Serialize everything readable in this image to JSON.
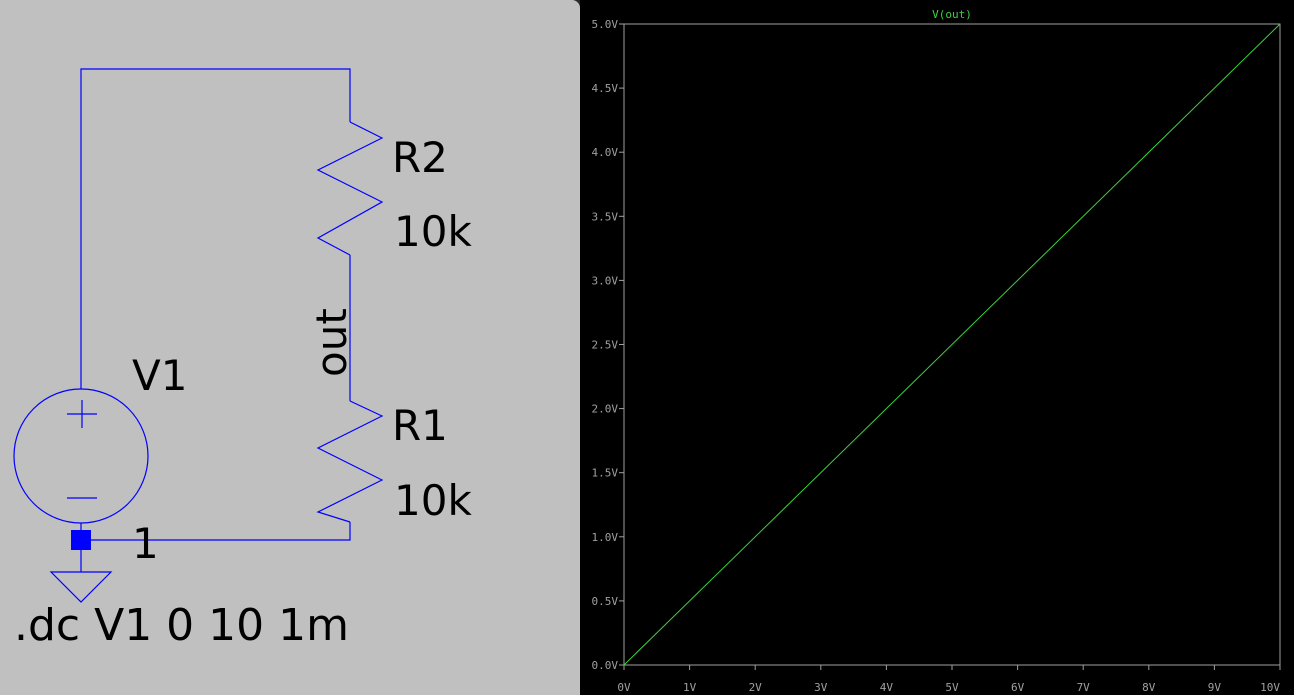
{
  "colors": {
    "schematic_bg": "#c0c0c0",
    "wire": "#0000ff",
    "plot_bg": "#000000",
    "plot_axis": "#a0a0a0",
    "trace": "#3cd23c"
  },
  "schematic": {
    "source_name": "V1",
    "r2_name": "R2",
    "r2_value": "10k",
    "r1_name": "R1",
    "r1_value": "10k",
    "net_label": "out",
    "node_label": "1",
    "directive": ".dc V1 0 10 1m"
  },
  "plot": {
    "chart_data": {
      "type": "line",
      "title": "",
      "xlabel": "",
      "ylabel": "",
      "xlim": [
        0,
        10
      ],
      "ylim": [
        0,
        5
      ],
      "x_ticks": [
        "0V",
        "1V",
        "2V",
        "3V",
        "4V",
        "5V",
        "6V",
        "7V",
        "8V",
        "9V",
        "10V"
      ],
      "y_ticks": [
        "0.0V",
        "0.5V",
        "1.0V",
        "1.5V",
        "2.0V",
        "2.5V",
        "3.0V",
        "3.5V",
        "4.0V",
        "4.5V",
        "5.0V"
      ],
      "grid": false,
      "legend": "top-center",
      "series": [
        {
          "name": "V(out)",
          "x": [
            0,
            10
          ],
          "y": [
            0,
            5
          ]
        }
      ]
    }
  }
}
